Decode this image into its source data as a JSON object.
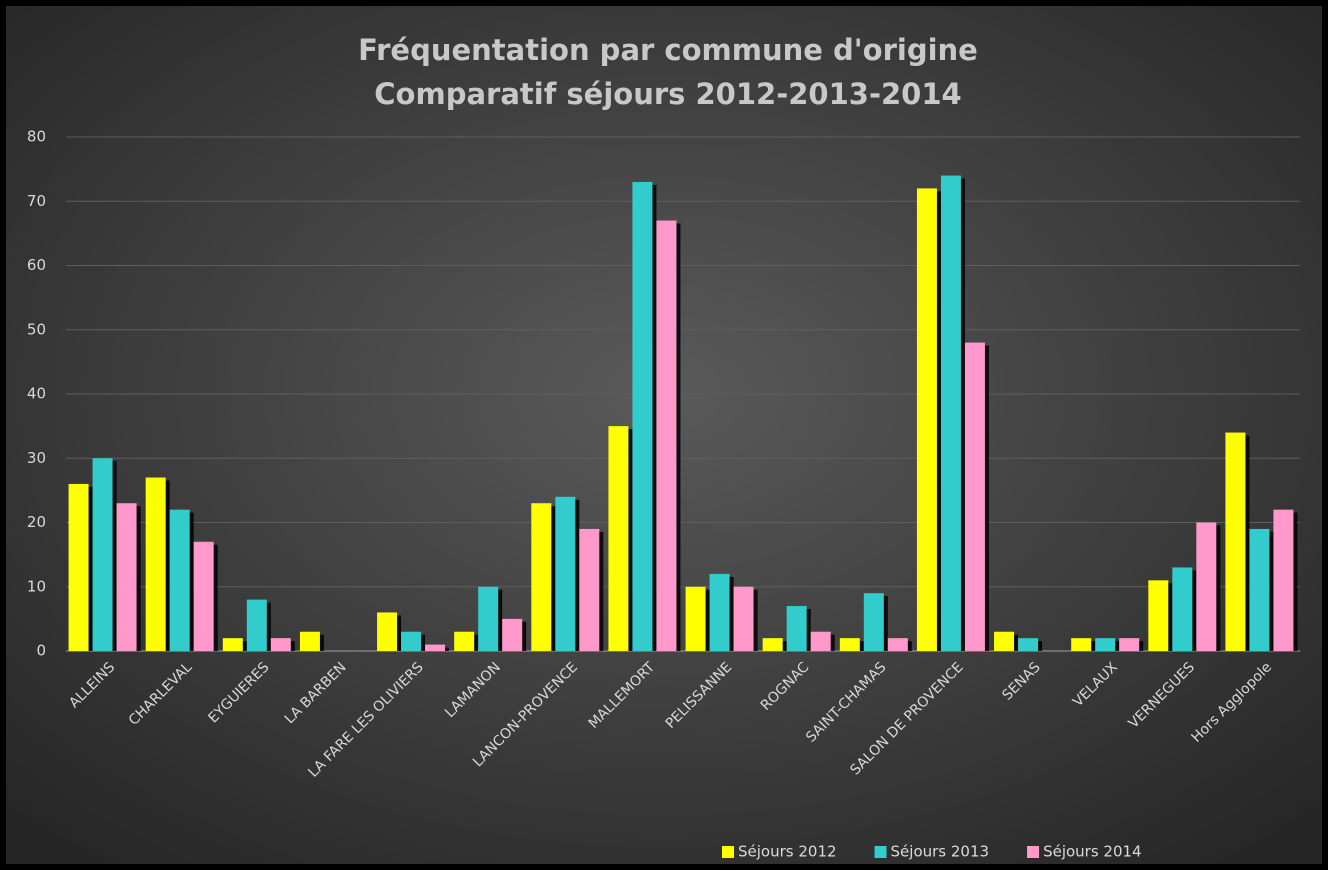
{
  "chart_data": {
    "type": "bar",
    "title": "Fréquentation par commune d'origine",
    "subtitle": "Comparatif séjours 2012-2013-2014",
    "categories": [
      "ALLEINS",
      "CHARLEVAL",
      "EYGUIERES",
      "LA BARBEN",
      "LA FARE LES OLIVIERS",
      "LAMANON",
      "LANCON-PROVENCE",
      "MALLEMORT",
      "PELISSANNE",
      "ROGNAC",
      "SAINT-CHAMAS",
      "SALON DE PROVENCE",
      "SENAS",
      "VELAUX",
      "VERNEGUES",
      "Hors Agglopole"
    ],
    "series": [
      {
        "name": "Séjours 2012",
        "color": "#ffff00",
        "values": [
          26,
          27,
          2,
          3,
          6,
          3,
          23,
          35,
          10,
          2,
          2,
          72,
          3,
          2,
          11,
          34
        ]
      },
      {
        "name": "Séjours 2013",
        "color": "#33cccc",
        "values": [
          30,
          22,
          8,
          0,
          3,
          10,
          24,
          73,
          12,
          7,
          9,
          74,
          2,
          2,
          13,
          19
        ]
      },
      {
        "name": "Séjours 2014",
        "color": "#ff99cc",
        "values": [
          23,
          17,
          2,
          0,
          1,
          5,
          19,
          67,
          10,
          3,
          2,
          48,
          0,
          2,
          20,
          22
        ]
      }
    ],
    "ylim": [
      0,
      80
    ],
    "yticks": [
      0,
      10,
      20,
      30,
      40,
      50,
      60,
      70,
      80
    ],
    "grid": true,
    "legend": "bottom-right"
  }
}
